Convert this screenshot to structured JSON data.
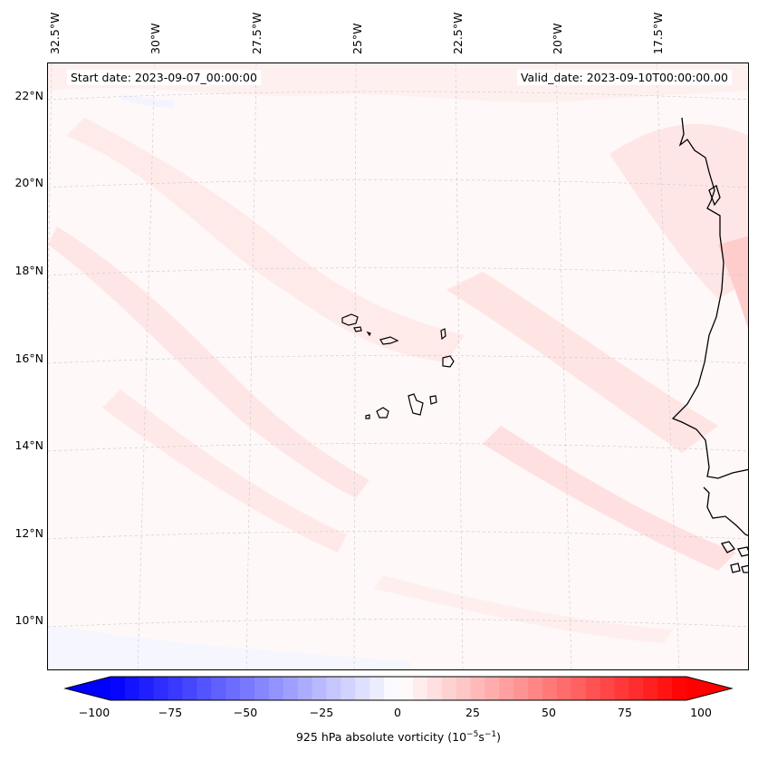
{
  "header": {
    "start_date": "Start date: 2023-09-07_00:00:00",
    "valid_date": "Valid_date: 2023-09-10T00:00:00.00"
  },
  "map": {
    "lon_labels": [
      "32.5°W",
      "30°W",
      "27.5°W",
      "25°W",
      "22.5°W",
      "20°W",
      "17.5°W"
    ],
    "lat_labels": [
      "22°N",
      "20°N",
      "18°N",
      "16°N",
      "14°N",
      "12°N",
      "10°N"
    ],
    "extent": {
      "lon_min": -33,
      "lon_max": -16.3,
      "lat_min": 9,
      "lat_max": 22.8
    },
    "field": "925 hPa absolute vorticity",
    "background_color": "#fefafa",
    "positive_color": "#ff0000",
    "negative_color": "#0000ff",
    "coastline_color": "#000000",
    "gridline_style": "dashed light gray"
  },
  "colorbar": {
    "label_text": "925 hPa absolute vorticity (10",
    "label_exp1": "−5",
    "label_mid": "s",
    "label_exp2": "−1",
    "label_end": ")",
    "ticks": [
      "−100",
      "−75",
      "−50",
      "−25",
      "0",
      "25",
      "50",
      "75",
      "100"
    ],
    "min": -100,
    "max": 100,
    "extend": "both",
    "colormap": "bwr"
  }
}
